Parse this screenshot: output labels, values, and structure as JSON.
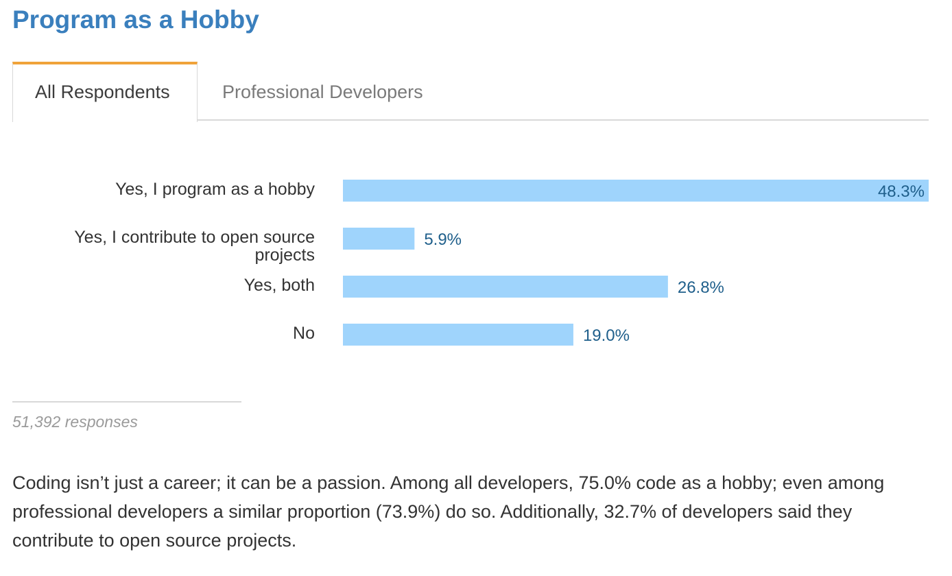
{
  "title": "Program as a Hobby",
  "tabs": {
    "all": "All Respondents",
    "pro": "Professional Developers"
  },
  "chart_data": {
    "type": "bar",
    "orientation": "horizontal",
    "bar_color": "#9fd4fc",
    "value_label_color": "#1f5f8b",
    "categories": [
      [
        "Yes, I program as a hobby"
      ],
      [
        "Yes, I contribute to open source",
        "projects"
      ],
      [
        "Yes, both"
      ],
      [
        "No"
      ]
    ],
    "values": [
      48.3,
      5.9,
      26.8,
      19.0
    ],
    "value_labels": [
      "48.3%",
      "5.9%",
      "26.8%",
      "19.0%"
    ],
    "xlim": [
      0,
      48.3
    ],
    "grid": false
  },
  "footer": {
    "responses": "51,392 responses"
  },
  "description": "Coding isn’t just a career; it can be a passion. Among all developers, 75.0% code as a hobby; even among professional developers a similar proportion (73.9%) do so. Additionally, 32.7% of developers said they contribute to open source projects."
}
